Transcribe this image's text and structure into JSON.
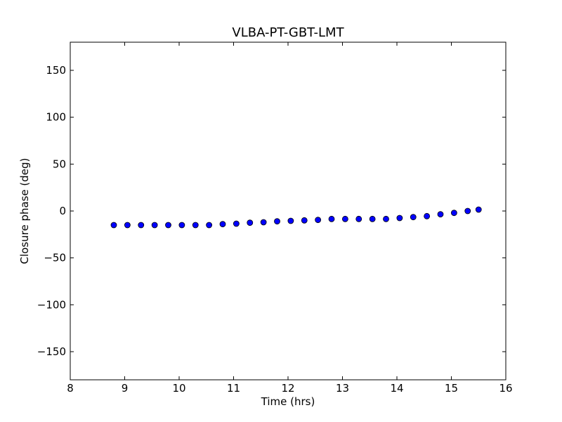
{
  "chart_data": {
    "type": "scatter",
    "title": "VLBA-PT-GBT-LMT",
    "xlabel": "Time (hrs)",
    "ylabel": "Closure phase (deg)",
    "xlim": [
      8,
      16
    ],
    "ylim": [
      -180,
      180
    ],
    "x_ticks": [
      8,
      9,
      10,
      11,
      12,
      13,
      14,
      15,
      16
    ],
    "x_tick_labels": [
      "8",
      "9",
      "10",
      "11",
      "12",
      "13",
      "14",
      "15",
      "16"
    ],
    "y_ticks": [
      150,
      100,
      50,
      0,
      -50,
      -100,
      -150
    ],
    "y_tick_labels": [
      "150",
      "100",
      "50",
      "0",
      "−50",
      "−100",
      "−150"
    ],
    "grid": false,
    "marker_color": "#0000ff",
    "marker_edge_color": "#000000",
    "series": [
      {
        "x": [
          8.8,
          9.05,
          9.3,
          9.55,
          9.8,
          10.05,
          10.3,
          10.55,
          10.8,
          11.05,
          11.3,
          11.55,
          11.8,
          12.05,
          12.3,
          12.55,
          12.8,
          13.05,
          13.3,
          13.55,
          13.8,
          14.05,
          14.3,
          14.55,
          14.8,
          15.05,
          15.3,
          15.5
        ],
        "y": [
          -15,
          -15,
          -15,
          -15,
          -15,
          -15,
          -15,
          -15,
          -14,
          -13.5,
          -12.5,
          -12,
          -11,
          -10.5,
          -10,
          -9.5,
          -8.5,
          -8.5,
          -8.5,
          -8.5,
          -8.5,
          -7.5,
          -6.5,
          -5.5,
          -3.5,
          -2,
          0,
          1.5
        ],
        "error": [
          2,
          2,
          2,
          2,
          2,
          2,
          2,
          2,
          2,
          2,
          2,
          2,
          2,
          2,
          2,
          2,
          2,
          2,
          2,
          2,
          2,
          2,
          2,
          2,
          2,
          2,
          2,
          2
        ]
      }
    ]
  }
}
